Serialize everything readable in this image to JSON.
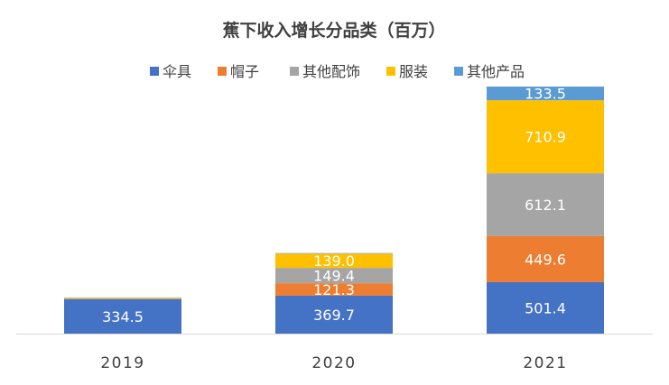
{
  "chart_data": {
    "type": "bar",
    "stacked": true,
    "title": "蕉下收入增长分品类（百万）",
    "categories": [
      "2019",
      "2020",
      "2021"
    ],
    "series": [
      {
        "name": "伞具",
        "color": "#4472C4",
        "values": [
          334.5,
          369.7,
          501.4
        ],
        "labels": [
          "334.5",
          "369.7",
          "501.4"
        ]
      },
      {
        "name": "帽子",
        "color": "#ED7D31",
        "values": [
          5,
          121.3,
          449.6
        ],
        "labels": [
          "",
          "121.3",
          "449.6"
        ]
      },
      {
        "name": "其他配饰",
        "color": "#A5A5A5",
        "values": [
          5,
          149.4,
          612.1
        ],
        "labels": [
          "",
          "149.4",
          "612.1"
        ]
      },
      {
        "name": "服装",
        "color": "#FFC000",
        "values": [
          6,
          139.0,
          710.9
        ],
        "labels": [
          "",
          "139.0",
          "710.9"
        ]
      },
      {
        "name": "其他产品",
        "color": "#5B9BD5",
        "values": [
          2,
          5,
          133.5
        ],
        "labels": [
          "",
          "",
          "133.5"
        ]
      }
    ],
    "xlabel": "",
    "ylabel": "",
    "ylim": [
      0,
      2400
    ],
    "grid": false,
    "legend_position": "top"
  }
}
